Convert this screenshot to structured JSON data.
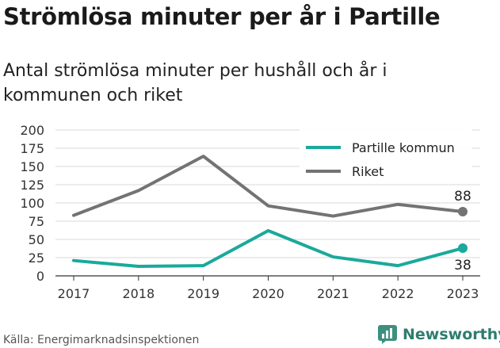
{
  "header": {
    "title": "Strömlösa minuter per år i Partille",
    "subtitle": "Antal strömlösa minuter per hushåll och år i kommunen och riket"
  },
  "footer": {
    "source": "Källa: Energimarknadsinspektionen",
    "brand": "Newsworthy"
  },
  "colors": {
    "partille": "#1aa99b",
    "riket": "#737373",
    "grid": "#d9d9d9",
    "brand": "#2e7d6e"
  },
  "chart_data": {
    "type": "line",
    "title": "Strömlösa minuter per år i Partille",
    "x": [
      "2017",
      "2018",
      "2019",
      "2020",
      "2021",
      "2022",
      "2023"
    ],
    "ylim": [
      0,
      200
    ],
    "yticks": [
      0,
      25,
      50,
      75,
      100,
      125,
      150,
      175,
      200
    ],
    "grid": true,
    "legend": "top-right",
    "series": [
      {
        "name": "Partille kommun",
        "color": "#1aa99b",
        "values": [
          21,
          13,
          14,
          62,
          26,
          14,
          38
        ],
        "end_label": "38"
      },
      {
        "name": "Riket",
        "color": "#737373",
        "values": [
          83,
          117,
          164,
          96,
          82,
          98,
          88
        ],
        "end_label": "88"
      }
    ]
  }
}
